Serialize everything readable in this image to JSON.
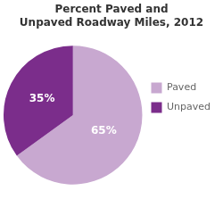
{
  "chart_data": {
    "type": "pie",
    "title": "Percent Paved and\nUnpaved Roadway Miles, 2012",
    "categories": [
      "Paved",
      "Unpaved"
    ],
    "values": [
      65,
      35
    ],
    "value_labels": [
      "65%",
      "35%"
    ],
    "colors": [
      "#c8a8d0",
      "#7b2d8b"
    ],
    "data_labels": true,
    "legend": "right"
  }
}
